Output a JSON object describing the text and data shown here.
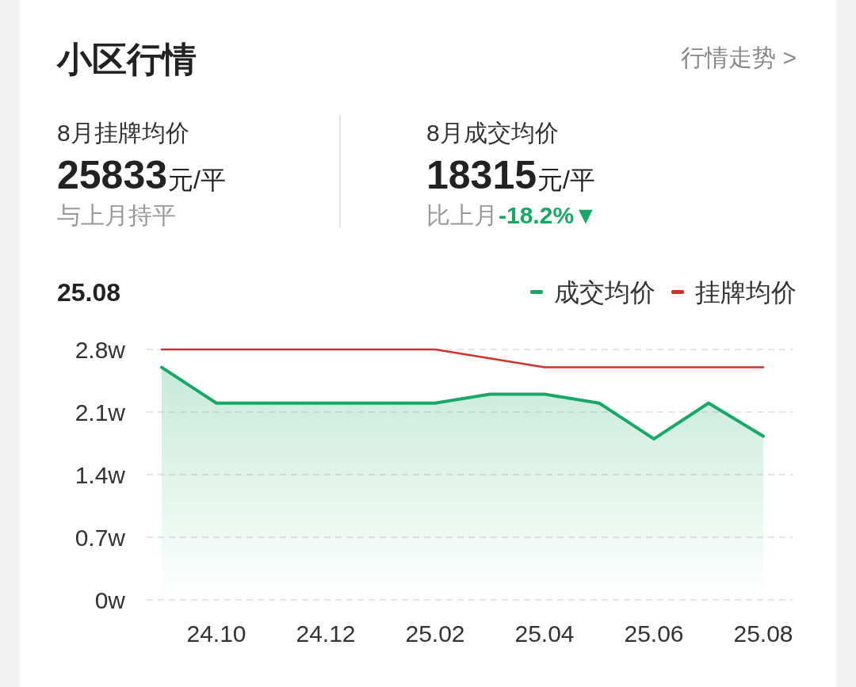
{
  "chart_data": {
    "type": "line",
    "title": "小区行情",
    "annotations": [
      "行情走势 >",
      "8月挂牌均价",
      "25833",
      "元/平",
      "与上月持平",
      "8月成交均价",
      "18315",
      "元/平",
      "比上月",
      "-18.2%▼",
      "25.08"
    ],
    "categories": [
      null,
      "24.10",
      null,
      "24.12",
      null,
      "25.02",
      null,
      "25.04",
      null,
      "25.06",
      null,
      "25.08"
    ],
    "series": [
      {
        "name": "成交均价",
        "type": "area",
        "color": "#17a866",
        "values": [
          2.6,
          2.2,
          2.2,
          2.2,
          2.2,
          2.2,
          2.3,
          2.3,
          2.2,
          1.8,
          2.2,
          1.83
        ]
      },
      {
        "name": "挂牌均价",
        "color": "#d0312d",
        "values": [
          2.8,
          2.8,
          2.8,
          2.8,
          2.8,
          2.8,
          2.7,
          2.6,
          2.6,
          2.6,
          2.6,
          2.6
        ]
      }
    ],
    "ylim": [
      0,
      2.8
    ],
    "yticks": [
      {
        "value": 0,
        "label": "0w"
      },
      {
        "value": 0.7,
        "label": "0.7w"
      },
      {
        "value": 1.4,
        "label": "1.4w"
      },
      {
        "value": 2.1,
        "label": "2.1w"
      },
      {
        "value": 2.8,
        "label": "2.8w"
      }
    ],
    "grid": "y",
    "legend": "top right"
  }
}
